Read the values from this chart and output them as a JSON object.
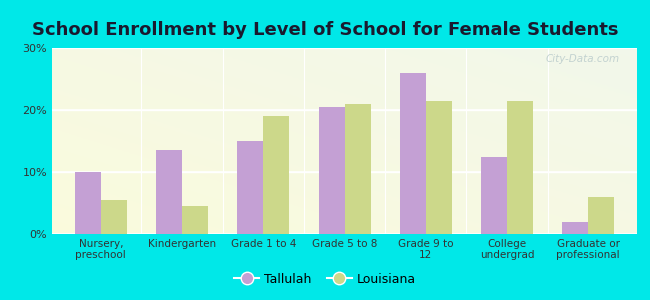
{
  "title": "School Enrollment by Level of School for Female Students",
  "categories": [
    "Nursery,\npreschool",
    "Kindergarten",
    "Grade 1 to 4",
    "Grade 5 to 8",
    "Grade 9 to\n12",
    "College\nundergrad",
    "Graduate or\nprofessional"
  ],
  "tallulah": [
    10,
    13.5,
    15,
    20.5,
    26,
    12.5,
    2
  ],
  "louisiana": [
    5.5,
    4.5,
    19,
    21,
    21.5,
    21.5,
    6
  ],
  "tallulah_color": "#c4a0d4",
  "louisiana_color": "#ccd88a",
  "background_color": "#00e8e8",
  "plot_bg_color": "#f2f8ec",
  "grid_color": "#e0e8d0",
  "ylabel_ticks": [
    "0%",
    "10%",
    "20%",
    "30%"
  ],
  "ytick_vals": [
    0,
    10,
    20,
    30
  ],
  "ylim": [
    0,
    30
  ],
  "title_fontsize": 13,
  "tick_fontsize": 8,
  "legend_labels": [
    "Tallulah",
    "Louisiana"
  ],
  "watermark": "City-Data.com",
  "bar_width": 0.32
}
